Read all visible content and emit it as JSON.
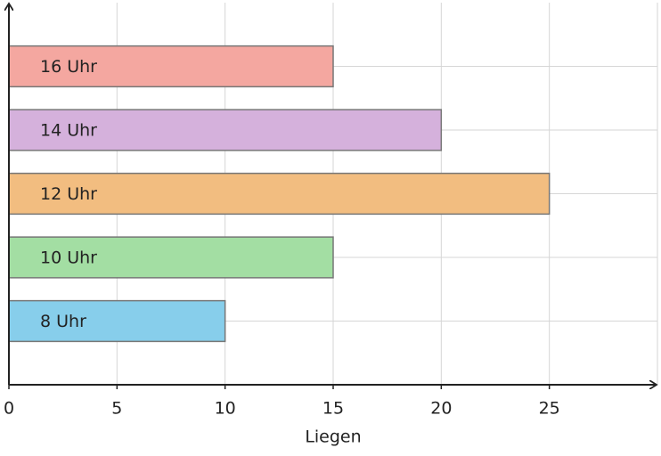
{
  "chart_data": {
    "type": "barh",
    "x_label": "Liegen",
    "categories": [
      "8 Uhr",
      "10 Uhr",
      "12 Uhr",
      "14 Uhr",
      "16 Uhr"
    ],
    "values": [
      10,
      15,
      25,
      20,
      15
    ],
    "colors": [
      "#87ceeb",
      "#a3dea3",
      "#f2bd80",
      "#d5b1dc",
      "#f4a7a0"
    ],
    "xlim": [
      0,
      30
    ],
    "xticks": [
      0,
      5,
      10,
      15,
      20,
      25
    ],
    "grid": true
  }
}
